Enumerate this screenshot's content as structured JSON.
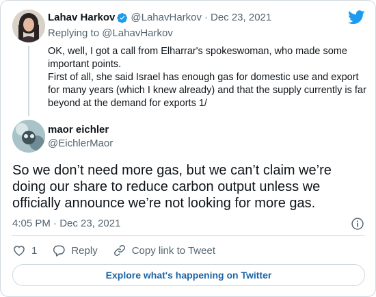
{
  "tweet_parent": {
    "author_name": "Lahav Harkov",
    "author_handle": "@LahavHarkov",
    "separator": "·",
    "date": "Dec 23, 2021",
    "replying_prefix": "Replying to",
    "replying_handle": "@LahavHarkov",
    "paragraph1": "OK, well, I got a call from Elharrar's spokeswoman, who made some important points.",
    "paragraph2": "First of all, she said Israel has enough gas for domestic use and export for many years (which I knew already) and that the supply currently is far beyond at the demand for exports 1/"
  },
  "tweet_main": {
    "author_name": "maor eichler",
    "author_handle": "@EichlerMaor",
    "text": "So we don’t need more gas, but we can’t claim we’re doing our share to reduce carbon output unless we officially announce we’re not looking for more gas.",
    "time": "4:05 PM",
    "separator": "·",
    "date": "Dec 23, 2021"
  },
  "actions": {
    "like_count": "1",
    "reply_label": "Reply",
    "copy_link_label": "Copy link to Tweet"
  },
  "explore_label": "Explore what's happening on Twitter",
  "icons": {
    "logo": "twitter-bird-icon",
    "verified": "verified-badge-icon",
    "info": "info-icon",
    "like": "heart-icon",
    "reply": "reply-bubble-icon",
    "copy": "link-icon"
  },
  "colors": {
    "twitter_blue": "#1d9bf0",
    "link_blue": "#1d64a5",
    "secondary_text": "#536471",
    "border": "#cfd9de"
  }
}
